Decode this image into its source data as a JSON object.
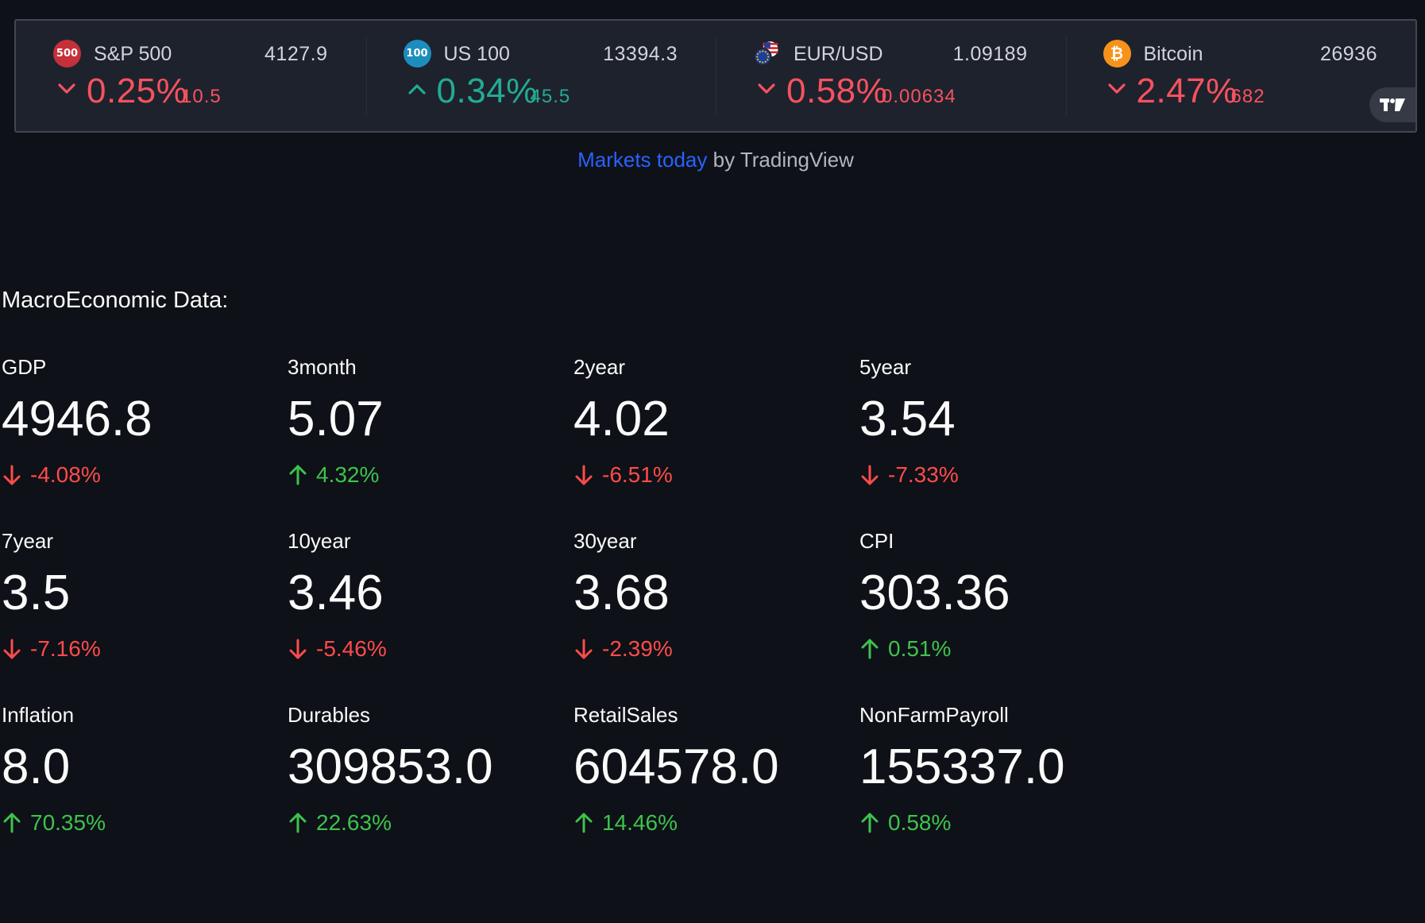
{
  "ticker": {
    "items": [
      {
        "id": "spx",
        "logo_text": "500",
        "logo_color": "#c5303a",
        "icon": "sp500-logo-icon",
        "name": "S&P 500",
        "price": "4127.9",
        "direction": "down",
        "change_pct": "0.25%",
        "change_abs": "10.5"
      },
      {
        "id": "ndx",
        "logo_text": "100",
        "logo_color": "#1c8dbd",
        "icon": "us100-logo-icon",
        "name": "US 100",
        "price": "13394.3",
        "direction": "up",
        "change_pct": "0.34%",
        "change_abs": "45.5"
      },
      {
        "id": "eurusd",
        "logo_text": "",
        "logo_color": "#1d3f9c",
        "icon": "eur-usd-flags-icon",
        "name": "EUR/USD",
        "price": "1.09189",
        "direction": "down",
        "change_pct": "0.58%",
        "change_abs": "0.00634"
      },
      {
        "id": "btc",
        "logo_text": "₿",
        "logo_color": "#f7931a",
        "icon": "bitcoin-logo-icon",
        "name": "Bitcoin",
        "price": "26936",
        "direction": "down",
        "change_pct": "2.47%",
        "change_abs": "682"
      }
    ],
    "badge_icon": "tradingview-logo-icon"
  },
  "caption": {
    "link_text": "Markets today",
    "suffix": " by TradingView"
  },
  "macro": {
    "title": "MacroEconomic Data:",
    "metrics": [
      {
        "label": "GDP",
        "value": "4946.8",
        "delta": "-4.08%",
        "direction": "down"
      },
      {
        "label": "3month",
        "value": "5.07",
        "delta": "4.32%",
        "direction": "up"
      },
      {
        "label": "2year",
        "value": "4.02",
        "delta": "-6.51%",
        "direction": "down"
      },
      {
        "label": "5year",
        "value": "3.54",
        "delta": "-7.33%",
        "direction": "down"
      },
      {
        "label": "7year",
        "value": "3.5",
        "delta": "-7.16%",
        "direction": "down"
      },
      {
        "label": "10year",
        "value": "3.46",
        "delta": "-5.46%",
        "direction": "down"
      },
      {
        "label": "30year",
        "value": "3.68",
        "delta": "-2.39%",
        "direction": "down"
      },
      {
        "label": "CPI",
        "value": "303.36",
        "delta": "0.51%",
        "direction": "up"
      },
      {
        "label": "Inflation",
        "value": "8.0",
        "delta": "70.35%",
        "direction": "up"
      },
      {
        "label": "Durables",
        "value": "309853.0",
        "delta": "22.63%",
        "direction": "up"
      },
      {
        "label": "RetailSales",
        "value": "604578.0",
        "delta": "14.46%",
        "direction": "up"
      },
      {
        "label": "NonFarmPayroll",
        "value": "155337.0",
        "delta": "0.58%",
        "direction": "up"
      }
    ]
  },
  "colors": {
    "background": "#0e1117",
    "ticker_bg": "#1e222d",
    "ticker_negative": "#f7525f",
    "ticker_positive": "#22ab94",
    "delta_negative": "#ff4b4b",
    "delta_positive": "#3dc34d",
    "link": "#2962ff"
  }
}
